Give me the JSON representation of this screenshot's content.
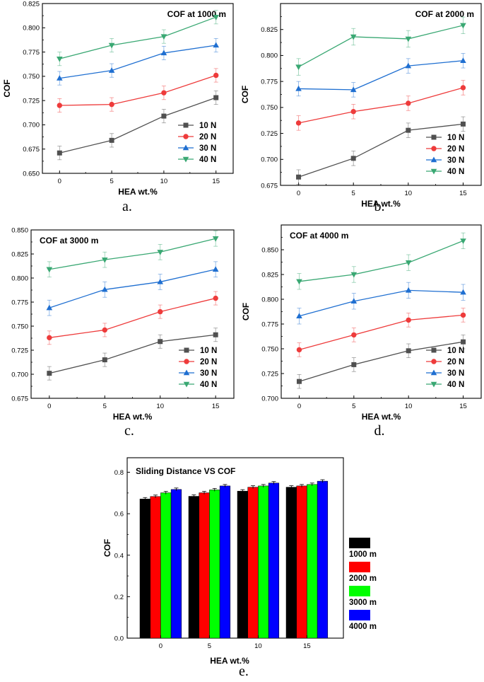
{
  "figure": {
    "colors": {
      "10 N": "#505050",
      "20 N": "#ee3b3b",
      "30 N": "#1f6fd1",
      "40 N": "#3aa873",
      "1000 m": "#000000",
      "2000 m": "#ff0000",
      "3000 m": "#00ff00",
      "4000 m": "#0000ff"
    }
  },
  "chart_data": [
    {
      "id": "a",
      "type": "line",
      "caption": "a.",
      "title": "COF at 1000 m",
      "xlabel": "HEA wt.%",
      "ylabel": "COF",
      "x": [
        0,
        5,
        10,
        15
      ],
      "ylim": [
        0.65,
        0.825
      ],
      "yticks": [
        0.65,
        0.675,
        0.7,
        0.725,
        0.75,
        0.775,
        0.8,
        0.825
      ],
      "ytick_labels": [
        "0.650",
        "0.675",
        "0.700",
        "0.725",
        "0.750",
        "0.775",
        "0.800",
        "0.825"
      ],
      "legend": "bottom-right",
      "series": [
        {
          "name": "10 N",
          "marker": "square",
          "values": [
            0.671,
            0.684,
            0.709,
            0.728
          ],
          "error": 0.007
        },
        {
          "name": "20 N",
          "marker": "circle",
          "values": [
            0.72,
            0.721,
            0.733,
            0.751
          ],
          "error": 0.007
        },
        {
          "name": "30 N",
          "marker": "triangle-up",
          "values": [
            0.748,
            0.756,
            0.774,
            0.782
          ],
          "error": 0.007
        },
        {
          "name": "40 N",
          "marker": "triangle-down",
          "values": [
            0.768,
            0.782,
            0.791,
            0.811
          ],
          "error": 0.007
        }
      ]
    },
    {
      "id": "b",
      "type": "line",
      "caption": "b.",
      "title": "COF at 2000 m",
      "xlabel": "HEA wt.%",
      "ylabel": "COF",
      "x": [
        0,
        5,
        10,
        15
      ],
      "ylim": [
        0.675,
        0.85
      ],
      "yticks": [
        0.675,
        0.7,
        0.725,
        0.75,
        0.775,
        0.8,
        0.825
      ],
      "ytick_labels": [
        "0.675",
        "0.700",
        "0.725",
        "0.750",
        "0.775",
        "0.800",
        "0.825"
      ],
      "legend": "bottom-right",
      "series": [
        {
          "name": "10 N",
          "marker": "square",
          "values": [
            0.683,
            0.701,
            0.728,
            0.734
          ],
          "error": 0.007
        },
        {
          "name": "20 N",
          "marker": "circle",
          "values": [
            0.735,
            0.746,
            0.754,
            0.769
          ],
          "error": 0.007
        },
        {
          "name": "30 N",
          "marker": "triangle-up",
          "values": [
            0.768,
            0.767,
            0.79,
            0.795
          ],
          "error": 0.007
        },
        {
          "name": "40 N",
          "marker": "triangle-down",
          "values": [
            0.789,
            0.818,
            0.816,
            0.829
          ],
          "error": 0.008
        }
      ]
    },
    {
      "id": "c",
      "type": "line",
      "caption": "c.",
      "title": "COF at 3000 m",
      "xlabel": "HEA wt.%",
      "ylabel": "COF",
      "x": [
        0,
        5,
        10,
        15
      ],
      "ylim": [
        0.675,
        0.85
      ],
      "yticks": [
        0.675,
        0.7,
        0.725,
        0.75,
        0.775,
        0.8,
        0.825,
        0.85
      ],
      "ytick_labels": [
        "0.675",
        "0.700",
        "0.725",
        "0.750",
        "0.775",
        "0.800",
        "0.825",
        "0.850"
      ],
      "legend": "bottom-right",
      "series": [
        {
          "name": "10 N",
          "marker": "square",
          "values": [
            0.701,
            0.715,
            0.734,
            0.741
          ],
          "error": 0.007
        },
        {
          "name": "20 N",
          "marker": "circle",
          "values": [
            0.738,
            0.746,
            0.765,
            0.779
          ],
          "error": 0.007
        },
        {
          "name": "30 N",
          "marker": "triangle-up",
          "values": [
            0.769,
            0.788,
            0.796,
            0.809
          ],
          "error": 0.008
        },
        {
          "name": "40 N",
          "marker": "triangle-down",
          "values": [
            0.809,
            0.819,
            0.827,
            0.841
          ],
          "error": 0.008
        }
      ]
    },
    {
      "id": "d",
      "type": "line",
      "caption": "d.",
      "title": "COF at 4000 m",
      "xlabel": "HEA wt.%",
      "ylabel": "COF",
      "x": [
        0,
        5,
        10,
        15
      ],
      "ylim": [
        0.7,
        0.875
      ],
      "yticks": [
        0.7,
        0.725,
        0.75,
        0.775,
        0.8,
        0.825,
        0.85
      ],
      "ytick_labels": [
        "0.700",
        "0.725",
        "0.750",
        "0.775",
        "0.800",
        "0.825",
        "0.850"
      ],
      "legend": "bottom-right",
      "series": [
        {
          "name": "10 N",
          "marker": "square",
          "values": [
            0.717,
            0.734,
            0.748,
            0.757
          ],
          "error": 0.007
        },
        {
          "name": "20 N",
          "marker": "circle",
          "values": [
            0.749,
            0.764,
            0.779,
            0.784
          ],
          "error": 0.007
        },
        {
          "name": "30 N",
          "marker": "triangle-up",
          "values": [
            0.783,
            0.798,
            0.809,
            0.807
          ],
          "error": 0.008
        },
        {
          "name": "40 N",
          "marker": "triangle-down",
          "values": [
            0.818,
            0.825,
            0.837,
            0.859
          ],
          "error": 0.008
        }
      ]
    },
    {
      "id": "e",
      "type": "bar",
      "caption": "e.",
      "title": "Sliding Distance VS COF",
      "xlabel": "HEA wt.%",
      "ylabel": "COF",
      "categories": [
        "0",
        "5",
        "10",
        "15"
      ],
      "ylim": [
        0.0,
        0.87
      ],
      "yticks": [
        0.0,
        0.2,
        0.4,
        0.6,
        0.8
      ],
      "ytick_labels": [
        "0.0",
        "0.2",
        "0.4",
        "0.6",
        "0.8"
      ],
      "legend": "right",
      "series": [
        {
          "name": "1000 m",
          "values": [
            0.671,
            0.684,
            0.709,
            0.728
          ],
          "error": 0.007
        },
        {
          "name": "2000 m",
          "values": [
            0.683,
            0.701,
            0.728,
            0.734
          ],
          "error": 0.007
        },
        {
          "name": "3000 m",
          "values": [
            0.701,
            0.715,
            0.734,
            0.741
          ],
          "error": 0.007
        },
        {
          "name": "4000 m",
          "values": [
            0.717,
            0.734,
            0.748,
            0.757
          ],
          "error": 0.007
        }
      ]
    }
  ]
}
